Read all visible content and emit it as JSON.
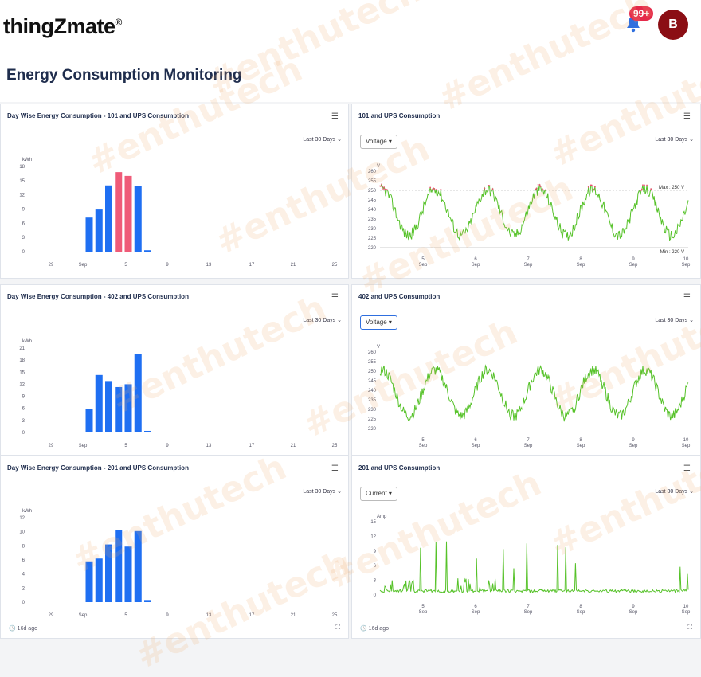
{
  "app": {
    "logo": "thingZmate",
    "logo_mark": "®",
    "notification_count": "99+",
    "avatar_letter": "B"
  },
  "page": {
    "title": "Energy Consumption Monitoring"
  },
  "watermark": "#enthutech",
  "colors": {
    "bar_blue": "#1f6ff2",
    "bar_red": "#ef5b78",
    "line_green": "#56c229",
    "line_red": "#e8506e"
  },
  "panels": {
    "bar101": {
      "title": "Day Wise Energy Consumption - 101 and UPS Consumption",
      "range": "Last 30 Days",
      "chart_data": {
        "type": "bar",
        "ylabel": "kWh",
        "y_ticks": [
          0,
          3,
          6,
          9,
          12,
          15,
          18
        ],
        "ylim": [
          0,
          18
        ],
        "x_ticks": [
          "29",
          "Sep",
          "5",
          "9",
          "13",
          "17",
          "21",
          "25"
        ],
        "bars": [
          {
            "x": 3.8,
            "value": 7.2,
            "color": "blue"
          },
          {
            "x": 4.5,
            "value": 8.9,
            "color": "blue"
          },
          {
            "x": 5.2,
            "value": 14.0,
            "color": "blue"
          },
          {
            "x": 5.9,
            "value": 16.8,
            "color": "red"
          },
          {
            "x": 6.6,
            "value": 16.0,
            "color": "red"
          },
          {
            "x": 7.3,
            "value": 13.9,
            "color": "blue"
          },
          {
            "x": 8.0,
            "value": 0.3,
            "color": "blue"
          }
        ]
      }
    },
    "line101": {
      "title": "101 and UPS Consumption",
      "range": "Last 30 Days",
      "selector": "Voltage",
      "chart_data": {
        "type": "line",
        "ylabel": "V",
        "y_ticks": [
          220,
          225,
          230,
          235,
          240,
          245,
          250,
          255,
          260
        ],
        "ylim": [
          220,
          260
        ],
        "x_ticks": [
          "5 Sep",
          "6 Sep",
          "7 Sep",
          "8 Sep",
          "9 Sep",
          "10 Sep"
        ],
        "max_label": "Max : 250 V",
        "min_label": "Min : 220 V",
        "threshold": 250
      }
    },
    "bar402": {
      "title": "Day Wise Energy Consumption - 402 and UPS Consumption",
      "range": "Last 30 Days",
      "chart_data": {
        "type": "bar",
        "ylabel": "kWh",
        "y_ticks": [
          0,
          3,
          6,
          9,
          12,
          15,
          18,
          21
        ],
        "ylim": [
          0,
          21
        ],
        "x_ticks": [
          "29",
          "Sep",
          "5",
          "9",
          "13",
          "17",
          "21",
          "25"
        ],
        "bars": [
          {
            "x": 3.8,
            "value": 5.8,
            "color": "blue"
          },
          {
            "x": 4.5,
            "value": 14.3,
            "color": "blue"
          },
          {
            "x": 5.2,
            "value": 12.8,
            "color": "blue"
          },
          {
            "x": 5.9,
            "value": 11.3,
            "color": "blue"
          },
          {
            "x": 6.6,
            "value": 12.0,
            "color": "blue"
          },
          {
            "x": 7.3,
            "value": 19.5,
            "color": "blue"
          },
          {
            "x": 8.0,
            "value": 0.4,
            "color": "blue"
          }
        ]
      }
    },
    "line402": {
      "title": "402 and UPS Consumption",
      "range": "Last 30 Days",
      "selector": "Voltage",
      "chart_data": {
        "type": "line",
        "ylabel": "V",
        "y_ticks": [
          220,
          225,
          230,
          235,
          240,
          245,
          250,
          255,
          260
        ],
        "ylim": [
          220,
          260
        ],
        "x_ticks": [
          "5 Sep",
          "6 Sep",
          "7 Sep",
          "8 Sep",
          "9 Sep",
          "10 Sep"
        ]
      }
    },
    "bar201": {
      "title": "Day Wise Energy Consumption - 201 and UPS Consumption",
      "range": "Last 30 Days",
      "updated": "16d ago",
      "chart_data": {
        "type": "bar",
        "ylabel": "kWh",
        "y_ticks": [
          0,
          2,
          4,
          6,
          8,
          10,
          12
        ],
        "ylim": [
          0,
          12
        ],
        "x_ticks": [
          "29",
          "Sep",
          "5",
          "9",
          "13",
          "17",
          "21",
          "25"
        ],
        "bars": [
          {
            "x": 3.8,
            "value": 5.8,
            "color": "blue"
          },
          {
            "x": 4.5,
            "value": 6.2,
            "color": "blue"
          },
          {
            "x": 5.2,
            "value": 8.2,
            "color": "blue"
          },
          {
            "x": 5.9,
            "value": 10.3,
            "color": "blue"
          },
          {
            "x": 6.6,
            "value": 7.9,
            "color": "blue"
          },
          {
            "x": 7.3,
            "value": 10.1,
            "color": "blue"
          },
          {
            "x": 8.0,
            "value": 0.3,
            "color": "blue"
          }
        ]
      }
    },
    "line201": {
      "title": "201 and UPS Consumption",
      "range": "Last 30 Days",
      "selector": "Current",
      "updated": "16d ago",
      "chart_data": {
        "type": "line",
        "ylabel": "Amp",
        "y_ticks": [
          0,
          3,
          6,
          9,
          12,
          15
        ],
        "ylim": [
          0,
          15
        ],
        "x_ticks": [
          "5 Sep",
          "6 Sep",
          "7 Sep",
          "8 Sep",
          "9 Sep",
          "10 Sep"
        ]
      }
    }
  }
}
